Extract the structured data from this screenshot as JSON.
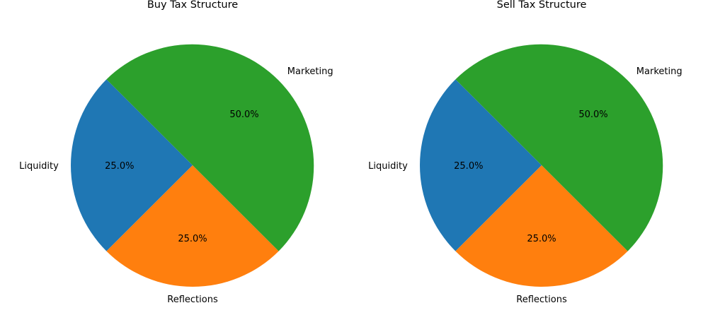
{
  "chart_data": [
    {
      "type": "pie",
      "title": "Buy Tax Structure",
      "categories": [
        "Liquidity",
        "Reflections",
        "Marketing"
      ],
      "values": [
        25,
        25,
        50
      ],
      "percent_labels": [
        "25.0%",
        "25.0%",
        "50.0%"
      ],
      "colors": [
        "#1f77b4",
        "#ff7f0e",
        "#2ca02c"
      ],
      "start_angle_deg": 135,
      "direction": "counterclockwise"
    },
    {
      "type": "pie",
      "title": "Sell Tax Structure",
      "categories": [
        "Liquidity",
        "Reflections",
        "Marketing"
      ],
      "values": [
        25,
        25,
        50
      ],
      "percent_labels": [
        "25.0%",
        "25.0%",
        "50.0%"
      ],
      "colors": [
        "#1f77b4",
        "#ff7f0e",
        "#2ca02c"
      ],
      "start_angle_deg": 135,
      "direction": "counterclockwise"
    }
  ]
}
